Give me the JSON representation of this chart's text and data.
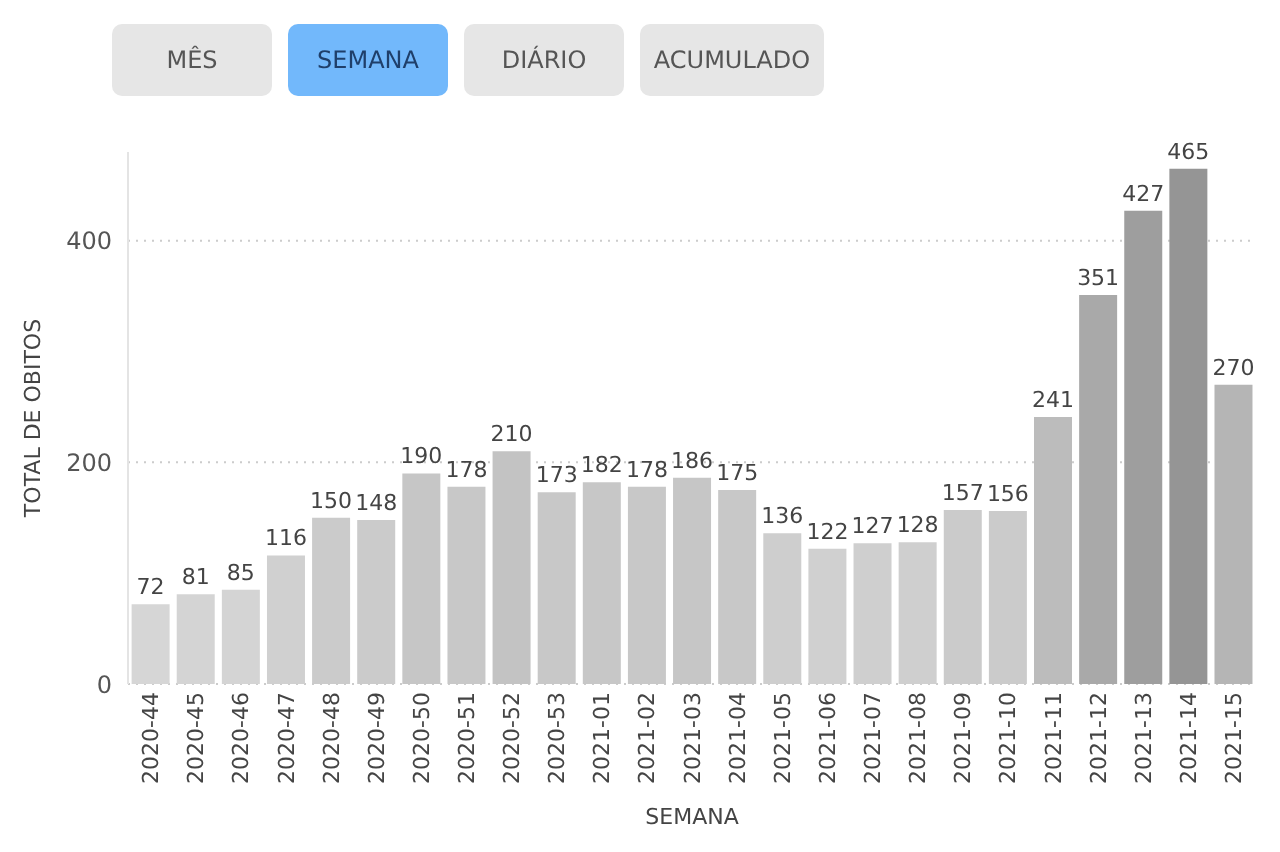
{
  "chart_data": {
    "type": "bar",
    "xlabel": "SEMANA",
    "ylabel": "TOTAL DE OBITOS",
    "annotations": [
      "MÊS",
      "SEMANA",
      "DIÁRIO",
      "ACUMULADO"
    ],
    "categories": [
      "2020-44",
      "2020-45",
      "2020-46",
      "2020-47",
      "2020-48",
      "2020-49",
      "2020-50",
      "2020-51",
      "2020-52",
      "2020-53",
      "2021-01",
      "2021-02",
      "2021-03",
      "2021-04",
      "2021-05",
      "2021-06",
      "2021-07",
      "2021-08",
      "2021-09",
      "2021-10",
      "2021-11",
      "2021-12",
      "2021-13",
      "2021-14",
      "2021-15"
    ],
    "values": [
      72,
      81,
      85,
      116,
      150,
      148,
      190,
      178,
      210,
      173,
      182,
      178,
      186,
      175,
      136,
      122,
      127,
      128,
      157,
      156,
      241,
      351,
      427,
      465,
      270
    ],
    "colors": [
      "#d6d6d6",
      "#d4d4d4",
      "#d4d4d4",
      "#d0d0d0",
      "#cbcbcb",
      "#cbcbcb",
      "#c6c6c6",
      "#c8c8c8",
      "#c3c3c3",
      "#c8c8c8",
      "#c7c7c7",
      "#c8c8c8",
      "#c6c6c6",
      "#c8c8c8",
      "#cecece",
      "#d0d0d0",
      "#cfcfcf",
      "#cfcfcf",
      "#cbcbcb",
      "#cbcbcb",
      "#bcbcbc",
      "#a9a9a9",
      "#9e9e9e",
      "#959595",
      "#b5b5b5"
    ],
    "ylim": [
      0,
      480
    ],
    "yticks": [
      0,
      200,
      400
    ],
    "grid": "y",
    "data_labels": true
  }
}
